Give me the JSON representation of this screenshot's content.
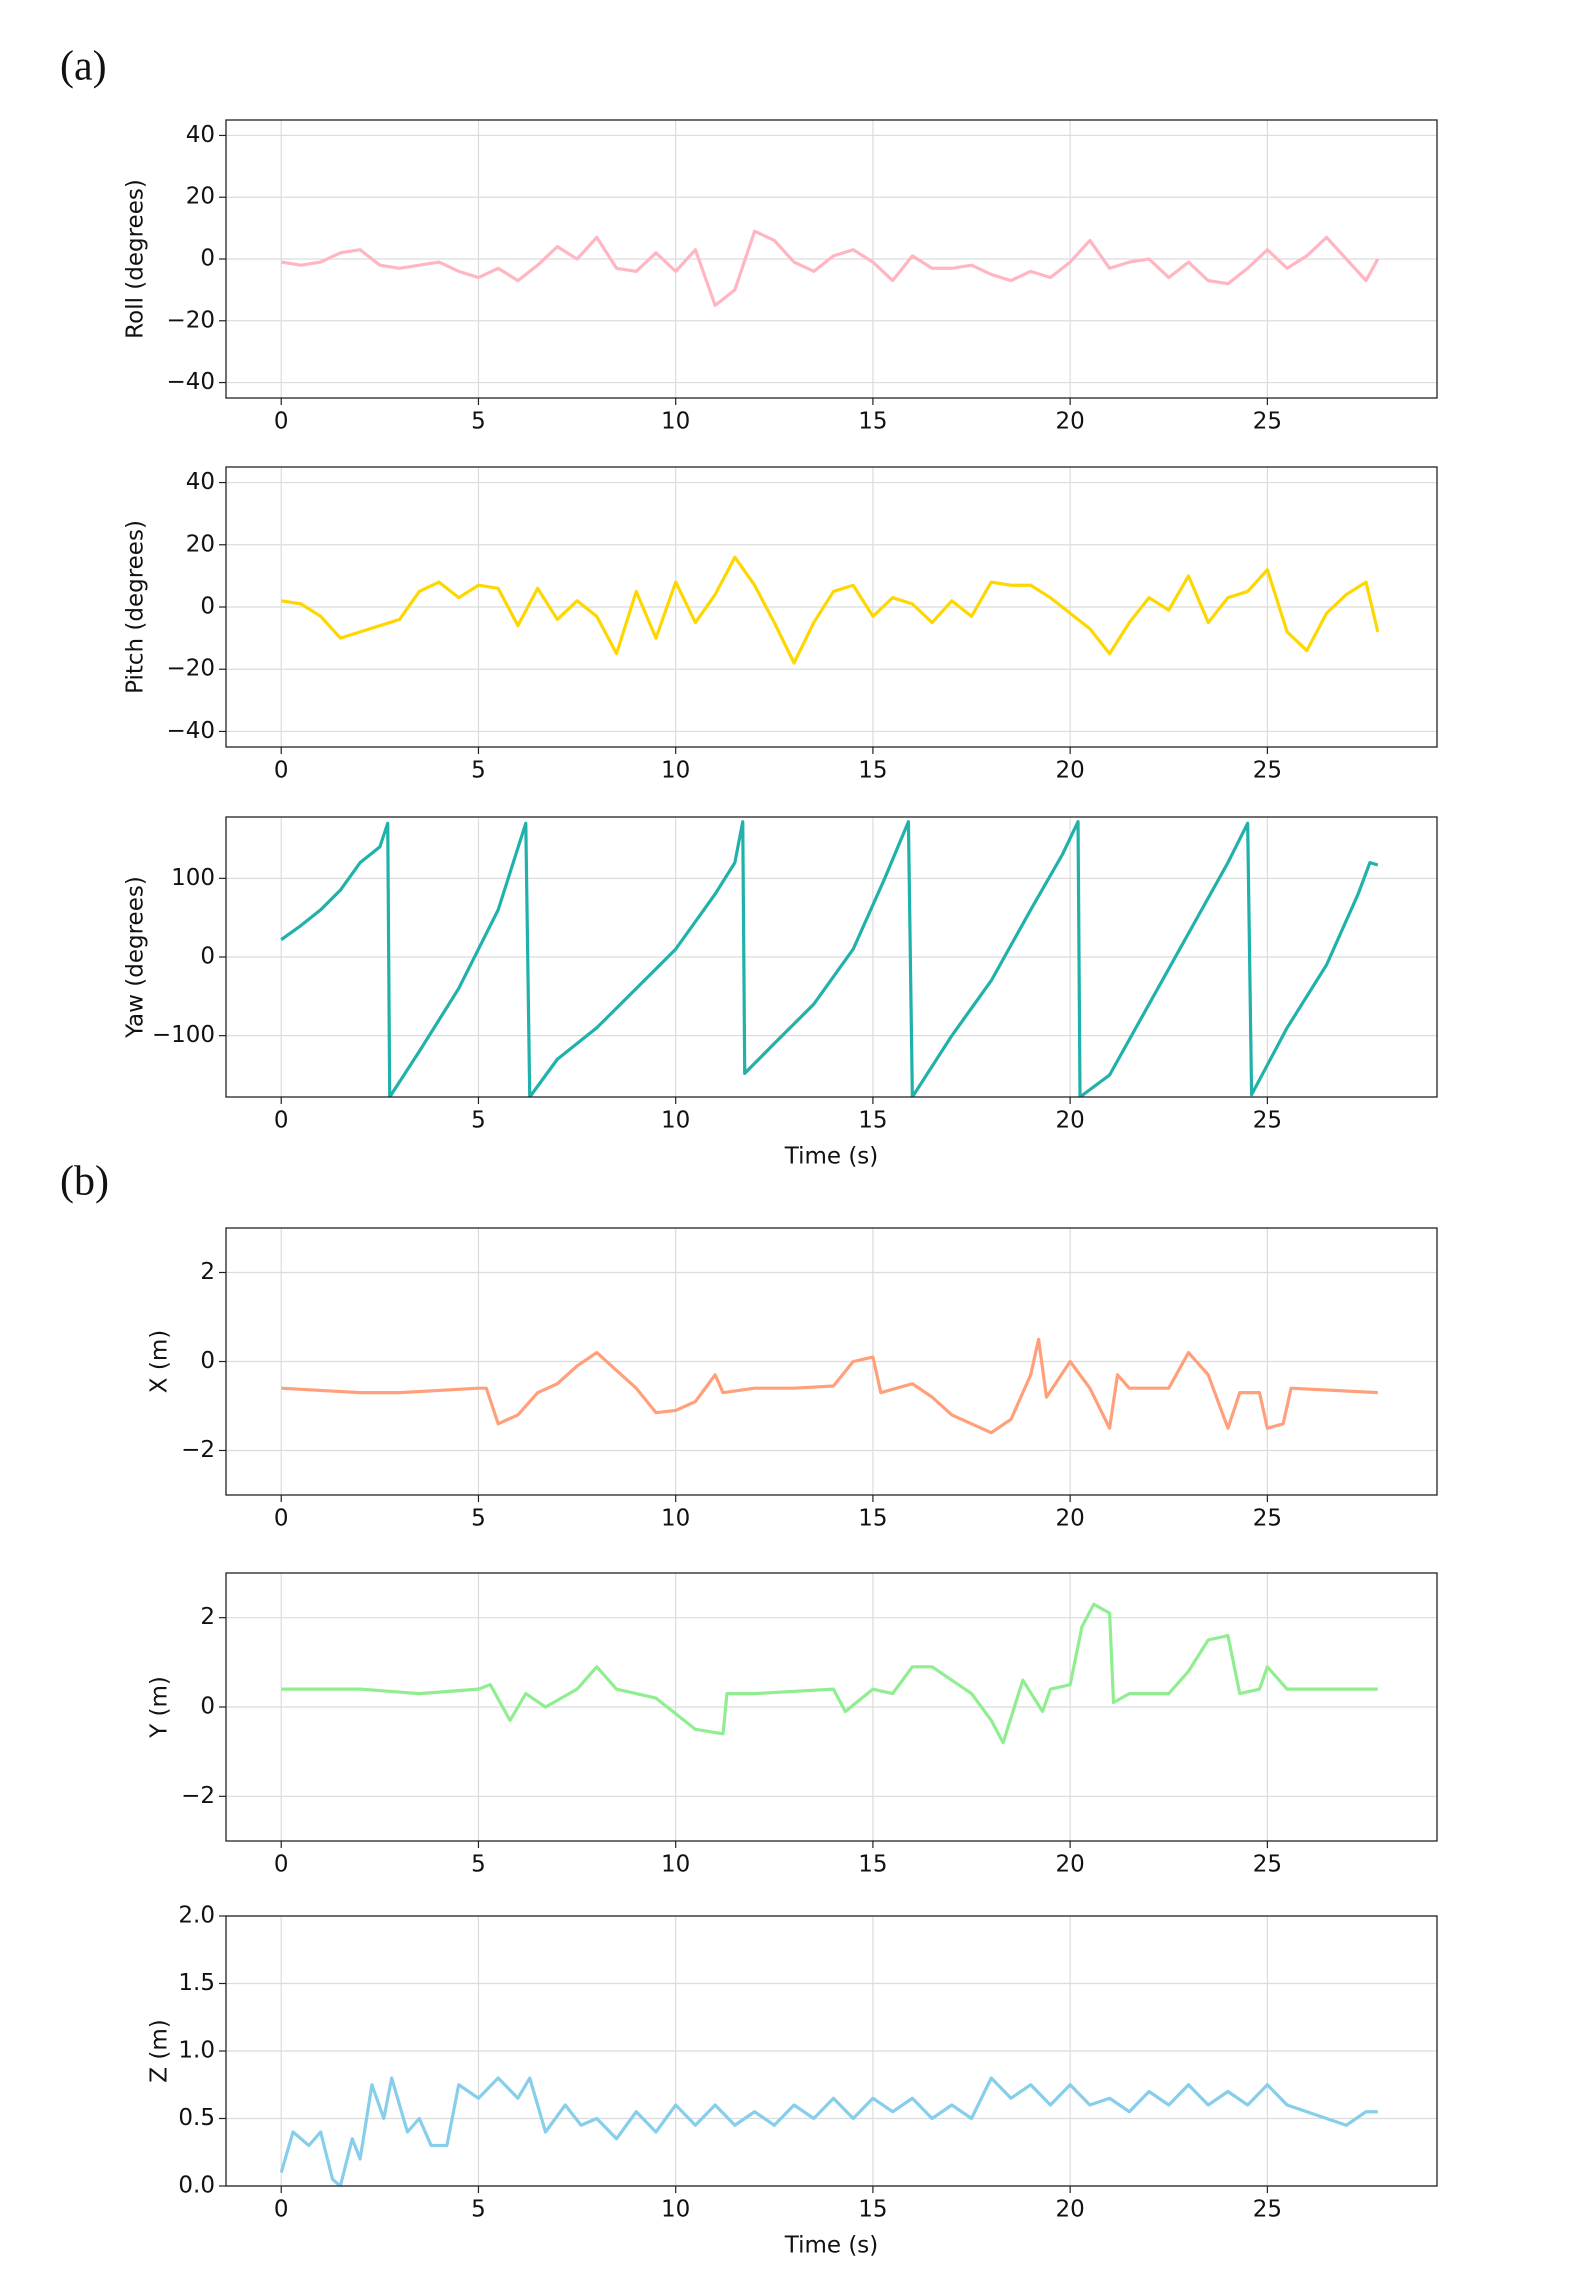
{
  "panels": [
    {
      "label": "(a)"
    },
    {
      "label": "(b)"
    }
  ],
  "chart_data": [
    {
      "type": "line",
      "ylabel": "Roll (degrees)",
      "color": "#ffb6c1",
      "grid": true,
      "xlim": [
        -1.4,
        29.3
      ],
      "ylim": [
        -45,
        45
      ],
      "xticks": [
        0,
        5,
        10,
        15,
        20,
        25
      ],
      "yticks": [
        {
          "value": -40,
          "label": "−40"
        },
        {
          "value": -20,
          "label": "−20"
        },
        0,
        20,
        40
      ],
      "x": [
        0,
        0.5,
        1,
        1.5,
        2,
        2.5,
        3,
        3.5,
        4,
        4.5,
        5,
        5.5,
        6,
        6.5,
        7,
        7.5,
        8,
        8.5,
        9,
        9.5,
        10,
        10.5,
        11,
        11.5,
        12,
        12.5,
        13,
        13.5,
        14,
        14.5,
        15,
        15.5,
        16,
        16.5,
        17,
        17.5,
        18,
        18.5,
        19,
        19.5,
        20,
        20.5,
        21,
        21.5,
        22,
        22.5,
        23,
        23.5,
        24,
        24.5,
        25,
        25.5,
        26,
        26.5,
        27,
        27.5,
        27.8
      ],
      "values": [
        -1,
        -2,
        -1,
        2,
        3,
        -2,
        -3,
        -2,
        -1,
        -4,
        -6,
        -3,
        -7,
        -2,
        4,
        0,
        7,
        -3,
        -4,
        2,
        -4,
        3,
        -15,
        -10,
        9,
        6,
        -1,
        -4,
        1,
        3,
        -1,
        -7,
        1,
        -3,
        -3,
        -2,
        -5,
        -7,
        -4,
        -6,
        -1,
        6,
        -3,
        -1,
        0,
        -6,
        -1,
        -7,
        -8,
        -3,
        3,
        -3,
        1,
        7,
        0,
        -7,
        0
      ]
    },
    {
      "type": "line",
      "ylabel": "Pitch (degrees)",
      "color": "#ffd700",
      "grid": true,
      "xlim": [
        -1.4,
        29.3
      ],
      "ylim": [
        -45,
        45
      ],
      "xticks": [
        0,
        5,
        10,
        15,
        20,
        25
      ],
      "yticks": [
        {
          "value": -40,
          "label": "−40"
        },
        {
          "value": -20,
          "label": "−20"
        },
        0,
        20,
        40
      ],
      "x": [
        0,
        0.5,
        1,
        1.5,
        2,
        2.5,
        3,
        3.5,
        4,
        4.5,
        5,
        5.5,
        6,
        6.5,
        7,
        7.5,
        8,
        8.5,
        9,
        9.5,
        10,
        10.5,
        11,
        11.5,
        12,
        12.5,
        13,
        13.5,
        14,
        14.5,
        15,
        15.5,
        16,
        16.5,
        17,
        17.5,
        18,
        18.5,
        19,
        19.5,
        20,
        20.5,
        21,
        21.5,
        22,
        22.5,
        23,
        23.5,
        24,
        24.5,
        25,
        25.5,
        26,
        26.5,
        27,
        27.5,
        27.8
      ],
      "values": [
        2,
        1,
        -3,
        -10,
        -8,
        -6,
        -4,
        5,
        8,
        3,
        7,
        6,
        -6,
        6,
        -4,
        2,
        -3,
        -15,
        5,
        -10,
        8,
        -5,
        4,
        16,
        7,
        -5,
        -18,
        -5,
        5,
        7,
        -3,
        3,
        1,
        -5,
        2,
        -3,
        8,
        7,
        7,
        3,
        -2,
        -7,
        -15,
        -5,
        3,
        -1,
        10,
        -5,
        3,
        5,
        12,
        -8,
        -14,
        -2,
        4,
        8,
        -8
      ]
    },
    {
      "type": "line",
      "ylabel": "Yaw (degrees)",
      "xlabel": "Time (s)",
      "color": "#20b2aa",
      "grid": true,
      "xlim": [
        -1.4,
        29.3
      ],
      "ylim": [
        -178,
        178
      ],
      "xticks": [
        0,
        5,
        10,
        15,
        20,
        25
      ],
      "yticks": [
        {
          "value": -100,
          "label": "−100"
        },
        0,
        100
      ],
      "x": [
        0,
        0.5,
        1,
        1.5,
        2,
        2.5,
        2.7,
        2.75,
        3.5,
        4.5,
        5.5,
        6.2,
        6.3,
        7,
        8,
        9,
        10,
        11,
        11.5,
        11.7,
        11.75,
        12.5,
        13.5,
        14.5,
        15.3,
        15.9,
        16,
        17,
        18,
        19,
        19.8,
        20.2,
        20.25,
        21,
        22,
        23,
        24,
        24.5,
        24.6,
        25.5,
        26.5,
        27.3,
        27.6,
        27.8
      ],
      "values": [
        22,
        40,
        60,
        85,
        120,
        140,
        170,
        -178,
        -120,
        -40,
        60,
        170,
        -178,
        -130,
        -90,
        -40,
        10,
        80,
        120,
        172,
        -148,
        -110,
        -60,
        10,
        100,
        172,
        -178,
        -100,
        -30,
        60,
        130,
        172,
        -178,
        -150,
        -60,
        30,
        120,
        170,
        -175,
        -90,
        -10,
        80,
        120,
        117
      ]
    },
    {
      "type": "line",
      "ylabel": "X (m)",
      "color": "#ffa07a",
      "grid": true,
      "xlim": [
        -1.4,
        29.3
      ],
      "ylim": [
        -3,
        3
      ],
      "xticks": [
        0,
        5,
        10,
        15,
        20,
        25
      ],
      "yticks": [
        {
          "value": -2,
          "label": "−2"
        },
        0,
        2
      ],
      "x": [
        0,
        1,
        2,
        3,
        4,
        5,
        5.2,
        5.5,
        6,
        6.5,
        7,
        7.5,
        8,
        8.5,
        9,
        9.5,
        10,
        10.5,
        11,
        11.2,
        12,
        13,
        14,
        14.5,
        15,
        15.2,
        16,
        16.5,
        17,
        17.5,
        18,
        18.5,
        19,
        19.2,
        19.4,
        20,
        20.5,
        21,
        21.2,
        21.5,
        22.5,
        23,
        23.5,
        24,
        24.3,
        24.8,
        25,
        25.4,
        25.6,
        27.8
      ],
      "values": [
        -0.6,
        -0.65,
        -0.7,
        -0.7,
        -0.65,
        -0.6,
        -0.6,
        -1.4,
        -1.2,
        -0.7,
        -0.5,
        -0.1,
        0.2,
        -0.2,
        -0.6,
        -1.15,
        -1.1,
        -0.9,
        -0.3,
        -0.7,
        -0.6,
        -0.6,
        -0.55,
        0,
        0.1,
        -0.7,
        -0.5,
        -0.8,
        -1.2,
        -1.4,
        -1.6,
        -1.3,
        -0.3,
        0.5,
        -0.8,
        0,
        -0.6,
        -1.5,
        -0.3,
        -0.6,
        -0.6,
        0.2,
        -0.3,
        -1.5,
        -0.7,
        -0.7,
        -1.5,
        -1.4,
        -0.6,
        -0.7
      ]
    },
    {
      "type": "line",
      "ylabel": "Y (m)",
      "color": "#90ee90",
      "grid": true,
      "xlim": [
        -1.4,
        29.3
      ],
      "ylim": [
        -3,
        3
      ],
      "xticks": [
        0,
        5,
        10,
        15,
        20,
        25
      ],
      "yticks": [
        {
          "value": -2,
          "label": "−2"
        },
        0,
        2
      ],
      "x": [
        0,
        2,
        3.5,
        5,
        5.3,
        5.8,
        6.2,
        6.7,
        7.5,
        8,
        8.5,
        9.5,
        10.5,
        11.2,
        11.3,
        12,
        14,
        14.3,
        15,
        15.5,
        16,
        16.5,
        17.5,
        18,
        18.3,
        18.8,
        19.3,
        19.5,
        20,
        20.3,
        20.6,
        21,
        21.1,
        21.5,
        22.5,
        23,
        23.5,
        24,
        24.3,
        24.8,
        25,
        25.5,
        27.8
      ],
      "values": [
        0.4,
        0.4,
        0.3,
        0.4,
        0.5,
        -0.3,
        0.3,
        0,
        0.4,
        0.9,
        0.4,
        0.2,
        -0.5,
        -0.6,
        0.3,
        0.3,
        0.4,
        -0.1,
        0.4,
        0.3,
        0.9,
        0.9,
        0.3,
        -0.3,
        -0.8,
        0.6,
        -0.1,
        0.4,
        0.5,
        1.8,
        2.3,
        2.1,
        0.1,
        0.3,
        0.3,
        0.8,
        1.5,
        1.6,
        0.3,
        0.4,
        0.9,
        0.4,
        0.4
      ]
    },
    {
      "type": "line",
      "ylabel": "Z (m)",
      "xlabel": "Time (s)",
      "color": "#87ceeb",
      "grid": true,
      "xlim": [
        -1.4,
        29.3
      ],
      "ylim": [
        0,
        2
      ],
      "xticks": [
        0,
        5,
        10,
        15,
        20,
        25
      ],
      "yticks": [
        {
          "value": 0,
          "label": "0.0"
        },
        {
          "value": 0.5,
          "label": "0.5"
        },
        {
          "value": 1,
          "label": "1.0"
        },
        {
          "value": 1.5,
          "label": "1.5"
        },
        {
          "value": 2,
          "label": "2.0"
        }
      ],
      "x": [
        0,
        0.3,
        0.7,
        1,
        1.3,
        1.5,
        1.8,
        2,
        2.3,
        2.6,
        2.8,
        3.2,
        3.5,
        3.8,
        4.2,
        4.5,
        5,
        5.5,
        6,
        6.3,
        6.7,
        7.2,
        7.6,
        8,
        8.5,
        9,
        9.5,
        10,
        10.5,
        11,
        11.5,
        12,
        12.5,
        13,
        13.5,
        14,
        14.5,
        15,
        15.5,
        16,
        16.5,
        17,
        17.5,
        18,
        18.5,
        19,
        19.5,
        20,
        20.5,
        21,
        21.5,
        22,
        22.5,
        23,
        23.5,
        24,
        24.5,
        25,
        25.5,
        26,
        26.5,
        27,
        27.5,
        27.8
      ],
      "values": [
        0.1,
        0.4,
        0.3,
        0.4,
        0.05,
        0,
        0.35,
        0.2,
        0.75,
        0.5,
        0.8,
        0.4,
        0.5,
        0.3,
        0.3,
        0.75,
        0.65,
        0.8,
        0.65,
        0.8,
        0.4,
        0.6,
        0.45,
        0.5,
        0.35,
        0.55,
        0.4,
        0.6,
        0.45,
        0.6,
        0.45,
        0.55,
        0.45,
        0.6,
        0.5,
        0.65,
        0.5,
        0.65,
        0.55,
        0.65,
        0.5,
        0.6,
        0.5,
        0.8,
        0.65,
        0.75,
        0.6,
        0.75,
        0.6,
        0.65,
        0.55,
        0.7,
        0.6,
        0.75,
        0.6,
        0.7,
        0.6,
        0.75,
        0.6,
        0.55,
        0.5,
        0.45,
        0.55,
        0.55
      ]
    }
  ]
}
